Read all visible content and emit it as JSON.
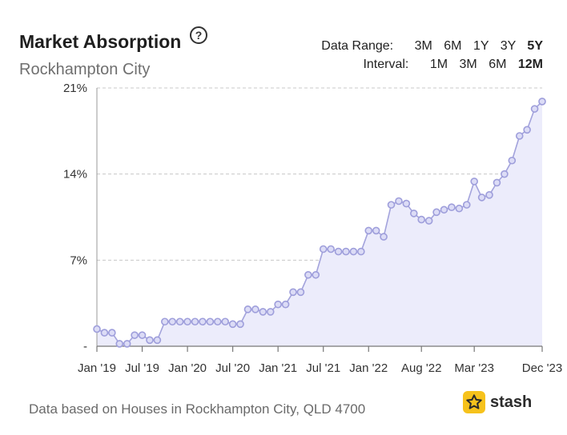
{
  "header": {
    "title": "Market Absorption",
    "help_icon": "question-circle-icon",
    "subtitle": "Rockhampton City"
  },
  "controls": {
    "data_range_label": "Data Range:",
    "data_range_options": [
      "3M",
      "6M",
      "1Y",
      "3Y",
      "5Y"
    ],
    "data_range_selected": "5Y",
    "interval_label": "Interval:",
    "interval_options": [
      "1M",
      "3M",
      "6M",
      "12M"
    ],
    "interval_selected": "12M"
  },
  "footer": {
    "note": "Data based on Houses in Rockhampton City, QLD 4700",
    "logo_text": "stash",
    "logo_icon": "star-icon",
    "logo_color": "#f6c21c"
  },
  "chart_data": {
    "type": "area",
    "title": "",
    "xlabel": "",
    "ylabel": "",
    "ylim": [
      0,
      21
    ],
    "yticks": [
      {
        "value": 0,
        "label": "-"
      },
      {
        "value": 7,
        "label": "7%"
      },
      {
        "value": 14,
        "label": "14%"
      },
      {
        "value": 21,
        "label": "21%"
      }
    ],
    "xticks": [
      "Jan '19",
      "Jul '19",
      "Jan '20",
      "Jul '20",
      "Jan '21",
      "Jul '21",
      "Jan '22",
      "Aug '22",
      "Mar '23",
      "Dec '23"
    ],
    "grid": true,
    "line_color": "#a3a3dc",
    "fill_color": "#ececfb",
    "series": [
      {
        "x": [
          "Jan '19",
          "Feb '19",
          "Mar '19",
          "Apr '19",
          "May '19",
          "Jun '19",
          "Jul '19",
          "Aug '19",
          "Sep '19",
          "Oct '19",
          "Nov '19",
          "Dec '19",
          "Jan '20",
          "Feb '20",
          "Mar '20",
          "Apr '20",
          "May '20",
          "Jun '20",
          "Jul '20",
          "Aug '20",
          "Sep '20",
          "Oct '20",
          "Nov '20",
          "Dec '20",
          "Jan '21",
          "Feb '21",
          "Mar '21",
          "Apr '21",
          "May '21",
          "Jun '21",
          "Jul '21",
          "Aug '21",
          "Sep '21",
          "Oct '21",
          "Nov '21",
          "Dec '21",
          "Jan '22",
          "Feb '22",
          "Mar '22",
          "Apr '22",
          "May '22",
          "Jun '22",
          "Jul '22",
          "Aug '22",
          "Sep '22",
          "Oct '22",
          "Nov '22",
          "Dec '22",
          "Jan '23",
          "Feb '23",
          "Mar '23",
          "Apr '23",
          "May '23",
          "Jun '23",
          "Jul '23",
          "Aug '23",
          "Sep '23",
          "Oct '23",
          "Nov '23",
          "Dec '23"
        ],
        "values": [
          1.4,
          1.1,
          1.1,
          0.2,
          0.2,
          0.9,
          0.9,
          0.5,
          0.5,
          2.0,
          2.0,
          2.0,
          2.0,
          2.0,
          2.0,
          2.0,
          2.0,
          2.0,
          1.8,
          1.8,
          3.0,
          3.0,
          2.8,
          2.8,
          3.4,
          3.4,
          4.4,
          4.4,
          5.8,
          5.8,
          7.9,
          7.9,
          7.7,
          7.7,
          7.7,
          7.7,
          9.4,
          9.4,
          8.9,
          11.5,
          11.8,
          11.6,
          10.8,
          10.3,
          10.2,
          10.9,
          11.1,
          11.3,
          11.2,
          11.5,
          13.4,
          12.1,
          12.3,
          13.3,
          14.0,
          15.1,
          17.1,
          17.6,
          19.3,
          19.9
        ]
      }
    ]
  }
}
